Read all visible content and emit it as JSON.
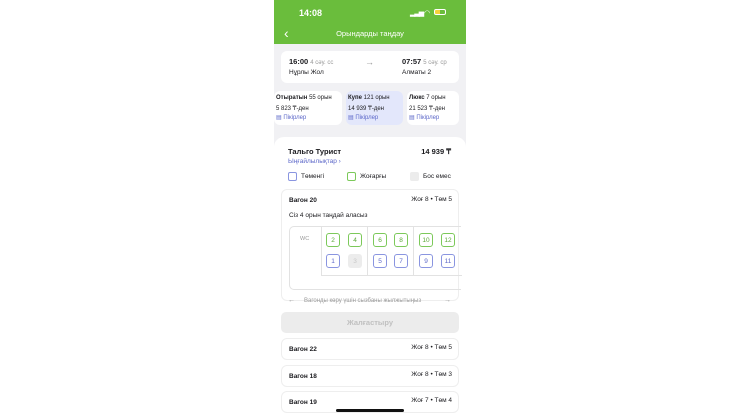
{
  "status": {
    "time": "14:08"
  },
  "header": {
    "title": "Орындарды таңдау"
  },
  "route": {
    "dep_time": "16:00",
    "dep_day": "4 сәу. сс",
    "dep_station": "Нұрлы Жол",
    "arr_time": "07:57",
    "arr_day": "5 сәу. ср",
    "arr_station": "Алматы 2"
  },
  "classes": [
    {
      "name": "Отыратын",
      "seats": "55 орын",
      "price": "5 823 ₸-ден",
      "reviews": "Пікірлер"
    },
    {
      "name": "Купе",
      "seats": "121 орын",
      "price": "14 939 ₸-ден",
      "reviews": "Пікірлер",
      "selected": true
    },
    {
      "name": "Люкс",
      "seats": "7 орын",
      "price": "21 523 ₸-ден",
      "reviews": "Пікірлер"
    }
  ],
  "train": {
    "name": "Тальго Турист",
    "price": "14 939 ₸",
    "amenities": "Ыңғайлылықтар"
  },
  "legend": {
    "lower": "Төменгі",
    "upper": "Жоғарғы",
    "occupied": "Бос емес"
  },
  "wagon": {
    "name": "Вагон 20",
    "counts": "Жоғ 8 • Төм 5",
    "hint": "Сіз 4 орын таңдай аласыз",
    "wc": "WC",
    "upper_seats": [
      "2",
      "4",
      "6",
      "8",
      "10",
      "12"
    ],
    "lower_seats": [
      "1",
      "3",
      "5",
      "7",
      "9",
      "11"
    ],
    "occupied": [
      "3"
    ]
  },
  "scroll_hint": "Вагонды көру үшін сызбаны жылжытыңыз",
  "continue": "Жалғастыру",
  "other_wagons": [
    {
      "name": "Вагон 22",
      "counts": "Жоғ 8 • Төм 5"
    },
    {
      "name": "Вагон 18",
      "counts": "Жоғ 8 • Төм 3"
    },
    {
      "name": "Вагон 19",
      "counts": "Жоғ 7 • Төм 4"
    }
  ],
  "colors": {
    "brand": "#6abd3c",
    "link": "#5d68c9"
  }
}
